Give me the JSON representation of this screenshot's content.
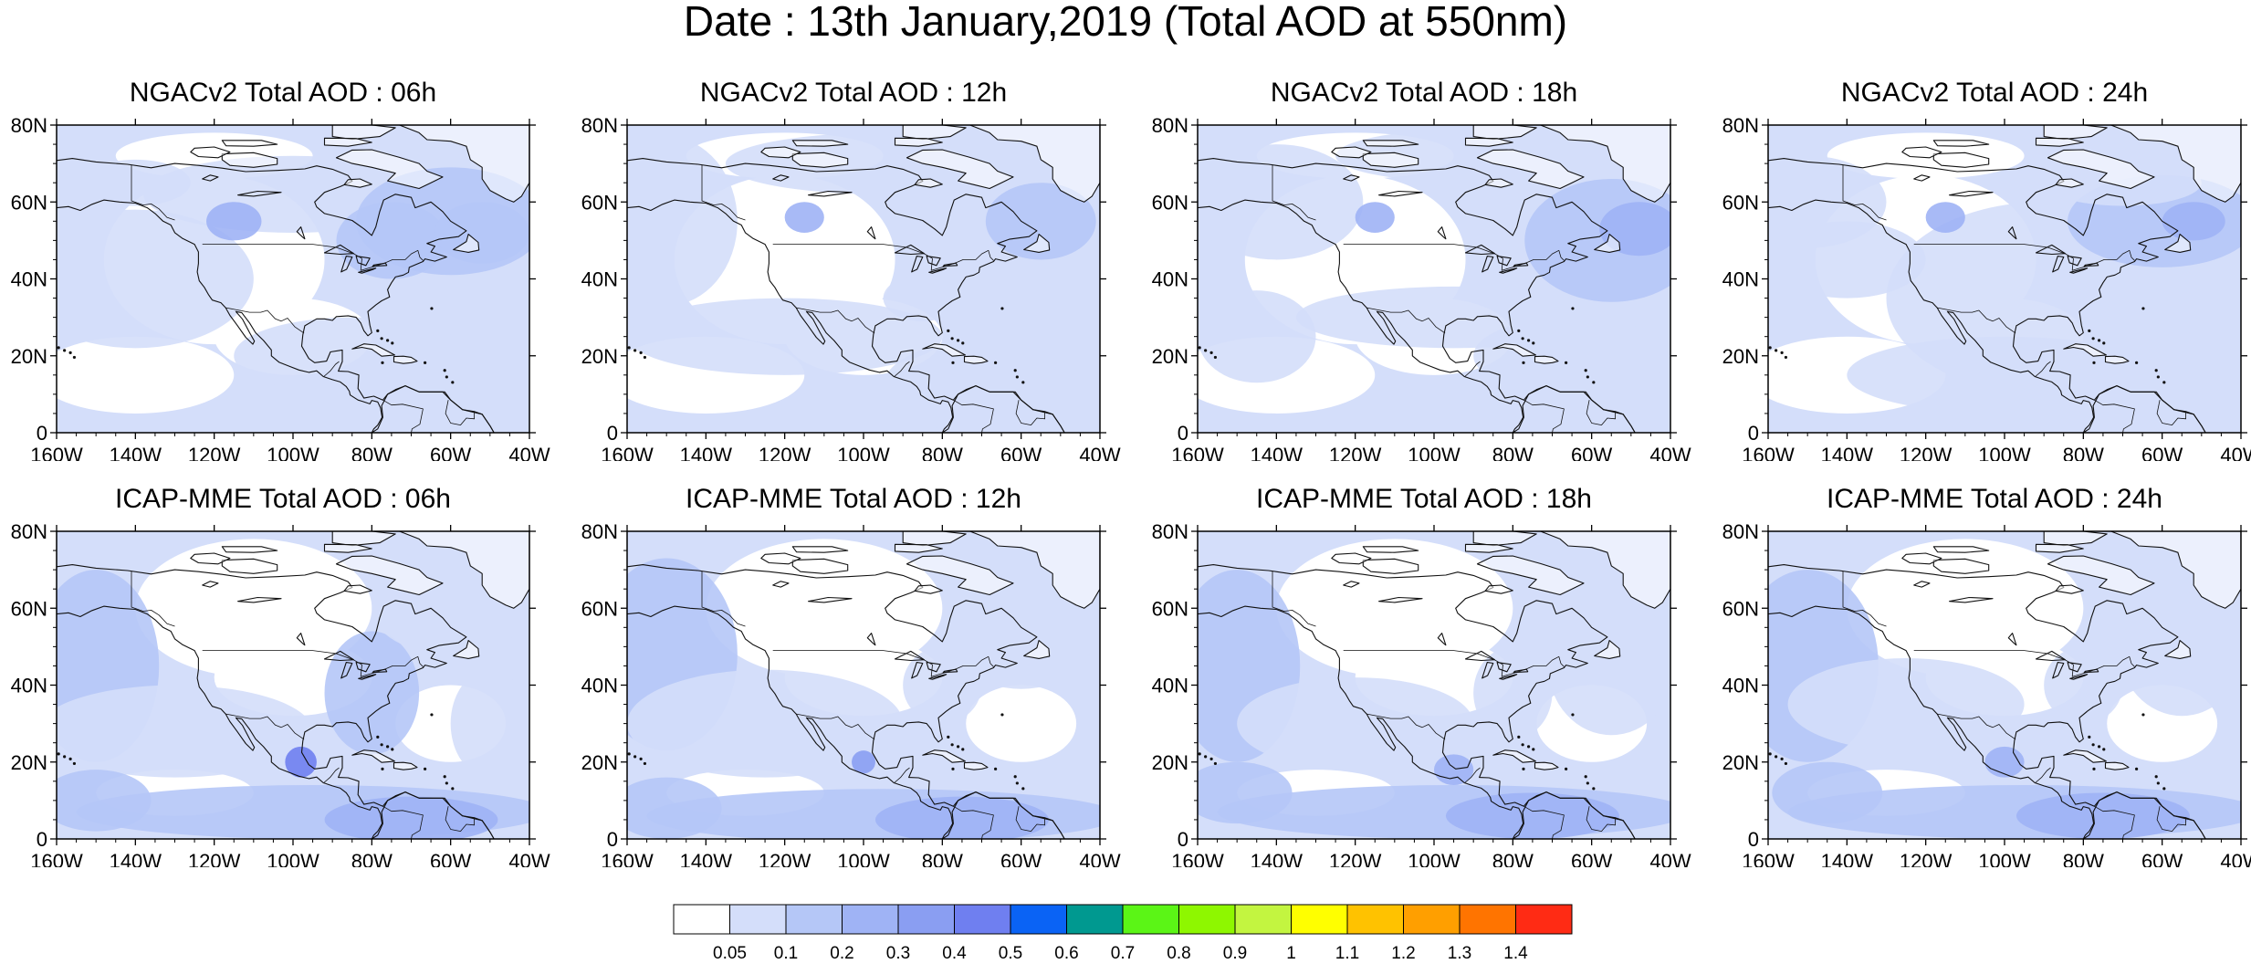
{
  "title": "Date : 13th January,2019 (Total AOD at 550nm)",
  "panels": [
    {
      "title": "NGACv2 Total AOD : 06h"
    },
    {
      "title": "NGACv2 Total AOD : 12h"
    },
    {
      "title": "NGACv2 Total AOD : 18h"
    },
    {
      "title": "NGACv2 Total AOD : 24h"
    },
    {
      "title": "ICAP-MME Total AOD : 06h"
    },
    {
      "title": "ICAP-MME Total AOD : 12h"
    },
    {
      "title": "ICAP-MME Total AOD : 18h"
    },
    {
      "title": "ICAP-MME Total AOD : 24h"
    }
  ],
  "map": {
    "lon_range": [
      -160,
      -40
    ],
    "lat_range": [
      0,
      80
    ],
    "x_ticks": [
      "160W",
      "140W",
      "120W",
      "100W",
      "80W",
      "60W",
      "40W"
    ],
    "y_ticks": [
      "0",
      "20N",
      "40N",
      "60N",
      "80N"
    ]
  },
  "colorbar": {
    "labels": [
      "0.05",
      "0.1",
      "0.2",
      "0.3",
      "0.4",
      "0.5",
      "0.6",
      "0.7",
      "0.8",
      "0.9",
      "1",
      "1.1",
      "1.2",
      "1.3",
      "1.4"
    ],
    "colors": [
      "#ffffff",
      "#d4defa",
      "#b5c7f7",
      "#9fb3f5",
      "#8a9ef2",
      "#6f7ff0",
      "#0a63f5",
      "#009990",
      "#5bf516",
      "#8ef700",
      "#c3f540",
      "#ffff00",
      "#ffc200",
      "#ff9f00",
      "#ff7400",
      "#ff2b14"
    ]
  }
}
